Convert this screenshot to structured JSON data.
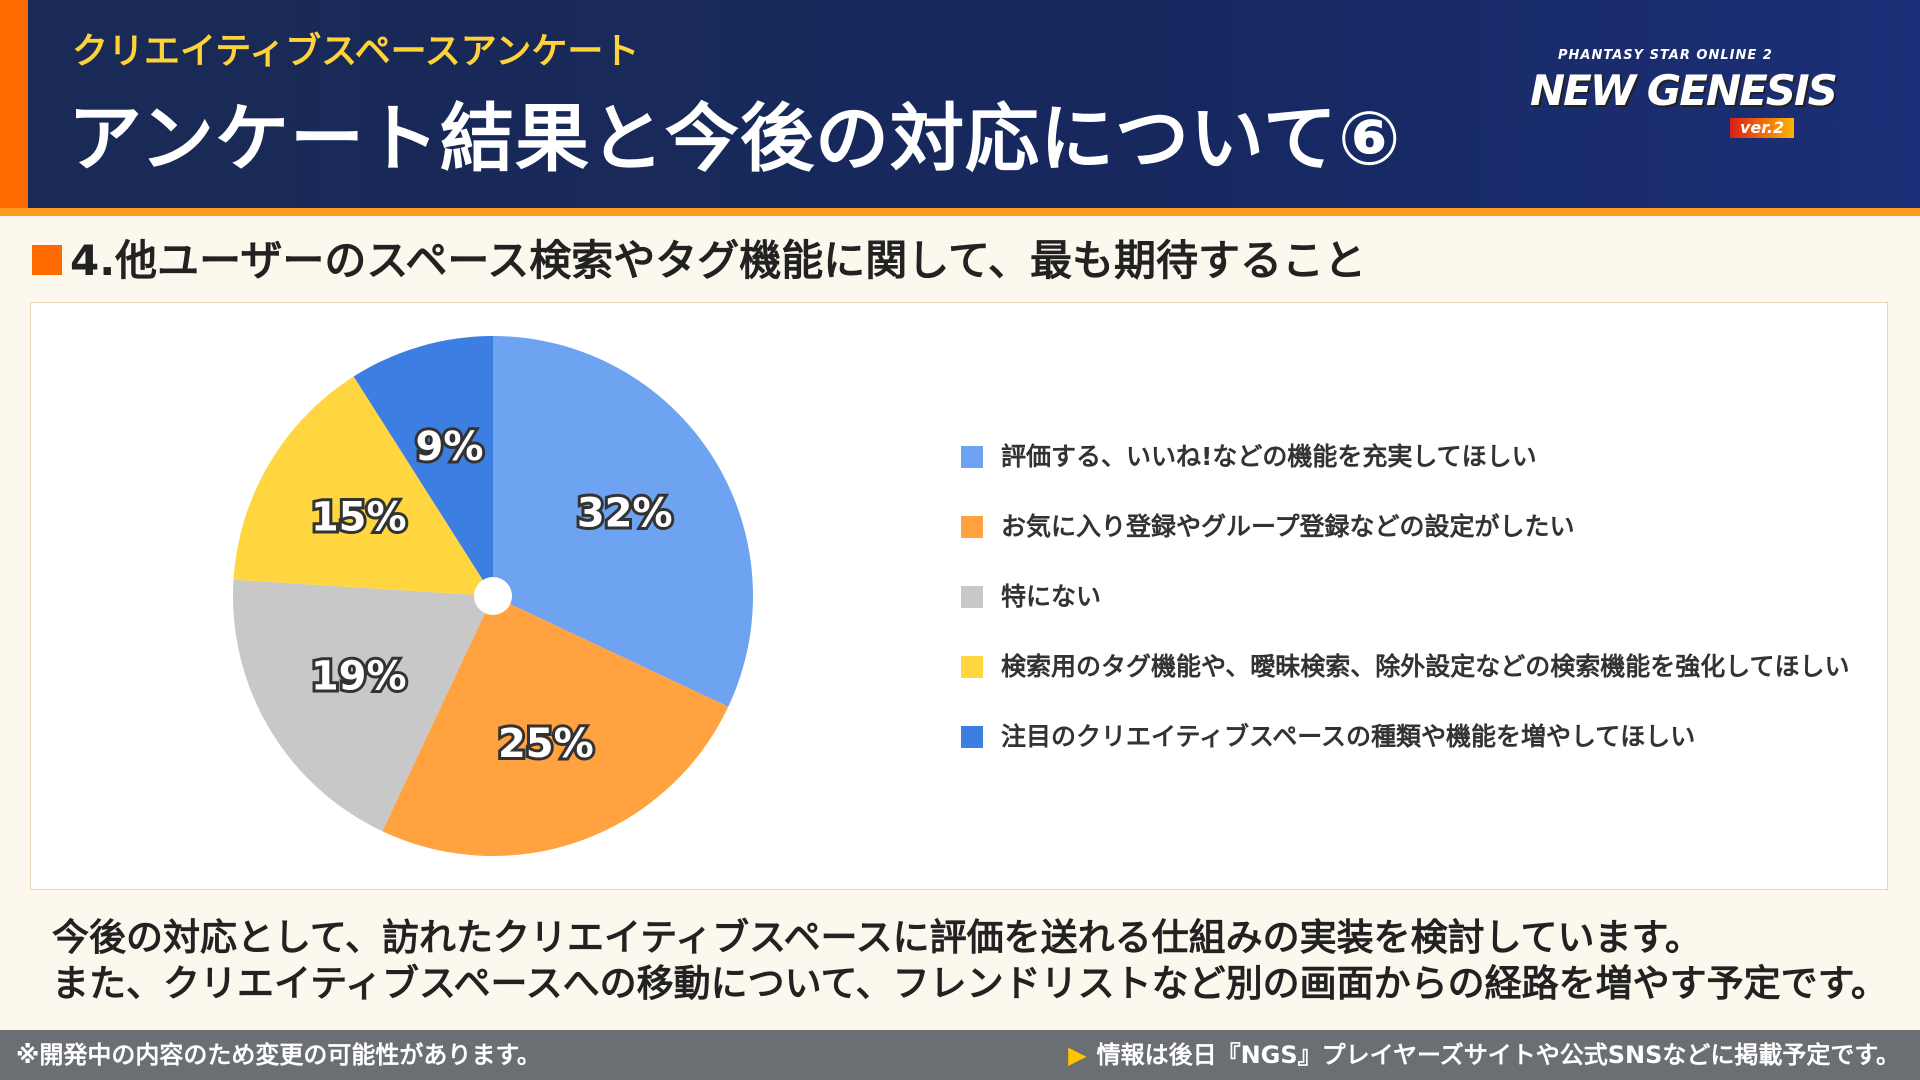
{
  "header": {
    "subtitle": "クリエイティブスペースアンケート",
    "title": "アンケート結果と今後の対応について⑥",
    "logo": {
      "small": "PHANTASY STAR ONLINE 2",
      "big": "NEW GENESIS",
      "ver": "ver.2"
    }
  },
  "section": {
    "title": "4.他ユーザーのスペース検索やタグ機能に関して、最も期待すること"
  },
  "chart_data": {
    "type": "pie",
    "start": "top",
    "direction": "clockwise",
    "slices": [
      {
        "name": "評価する、いいね!などの機能を充実してほしい",
        "value": 32,
        "label": "32%",
        "color": "#6ea3f2"
      },
      {
        "name": "お気に入り登録やグループ登録などの設定がしたい",
        "value": 25,
        "label": "25%",
        "color": "#ffa23f"
      },
      {
        "name": "特にない",
        "value": 19,
        "label": "19%",
        "color": "#c8c8c8"
      },
      {
        "name": "検索用のタグ機能や、曖昧検索、除外設定などの検索機能を強化してほしい",
        "value": 15,
        "label": "15%",
        "color": "#ffd640"
      },
      {
        "name": "注目のクリエイティブスペースの種類や機能を増やしてほしい",
        "value": 9,
        "label": "9%",
        "color": "#3d7ee2"
      }
    ],
    "legend": "right"
  },
  "note": {
    "line1": "今後の対応として、訪れたクリエイティブスペースに評価を送れる仕組みの実装を検討しています。",
    "line2": "また、クリエイティブスペースへの移動について、フレンドリストなど別の画面からの経路を増やす予定です。"
  },
  "footer": {
    "left": "※開発中の内容のため変更の可能性があります。",
    "arrow": "▶",
    "right": "情報は後日『NGS』プレイヤーズサイトや公式SNSなどに掲載予定です。"
  }
}
